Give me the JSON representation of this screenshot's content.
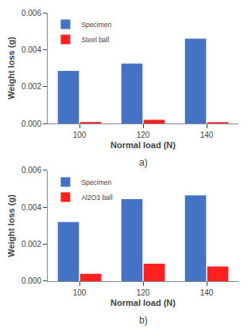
{
  "chart_data": [
    {
      "type": "bar",
      "title": "a)",
      "categories": [
        "100",
        "120",
        "140"
      ],
      "series": [
        {
          "name": "Specimen",
          "color": "#4472C4",
          "values": [
            0.00285,
            0.00325,
            0.0046
          ]
        },
        {
          "name": "Steel ball",
          "color": "#FF2020",
          "values": [
            8e-05,
            0.0002,
            7e-05
          ]
        }
      ],
      "xlabel": "Normal load (N)",
      "ylabel": "Weight loss (g)",
      "ylim": [
        0,
        0.006
      ],
      "yticks": [
        {
          "value": 0,
          "label": "0.000"
        },
        {
          "value": 0.002,
          "label": "0.002"
        },
        {
          "value": 0.004,
          "label": "0.004"
        },
        {
          "value": 0.006,
          "label": "0.006"
        }
      ],
      "legend": "upper left",
      "grid": false
    },
    {
      "type": "bar",
      "title": "b)",
      "categories": [
        "100",
        "120",
        "140"
      ],
      "series": [
        {
          "name": "Specimen",
          "color": "#4472C4",
          "values": [
            0.0032,
            0.00445,
            0.00465
          ]
        },
        {
          "name": "Al2O3 ball",
          "color": "#FF2020",
          "values": [
            0.0004,
            0.00095,
            0.0008
          ]
        }
      ],
      "xlabel": "Normal load (N)",
      "ylabel": "Weight loss (g)",
      "ylim": [
        0,
        0.006
      ],
      "yticks": [
        {
          "value": 0,
          "label": "0.000"
        },
        {
          "value": 0.002,
          "label": "0.002"
        },
        {
          "value": 0.004,
          "label": "0.004"
        },
        {
          "value": 0.006,
          "label": "0.006"
        }
      ],
      "legend": "upper left",
      "grid": false
    }
  ]
}
